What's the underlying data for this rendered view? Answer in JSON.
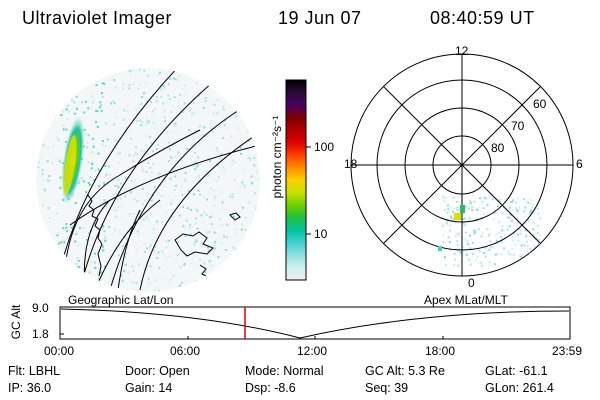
{
  "header": {
    "title": "Ultraviolet Imager",
    "date": "19 Jun 07",
    "time": "08:40:59 UT"
  },
  "left_panel": {
    "label": "Geographic Lat/Lon"
  },
  "right_panel": {
    "label": "Apex MLat/MLT",
    "mlt_labels": {
      "top": "12",
      "left": "18",
      "right": "6",
      "bottom": "0"
    },
    "lat_labels": [
      "60",
      "70",
      "80"
    ]
  },
  "colorbar": {
    "unit_label": "photon cm⁻²s⁻¹",
    "ticks": [
      "100",
      "10"
    ],
    "colors": [
      "#000000",
      "#2a0a3a",
      "#4a0060",
      "#800000",
      "#b00000",
      "#e00000",
      "#ff4000",
      "#ff8c00",
      "#ffd000",
      "#c8e000",
      "#70d000",
      "#20c040",
      "#00c0a0",
      "#40d0d0",
      "#90e0e0",
      "#d0f0f0",
      "#eeeeee"
    ]
  },
  "altitude_plot": {
    "y_title": "GC Alt",
    "y_ticks": [
      "9.0",
      "1.8"
    ],
    "x_ticks": [
      "00:00",
      "06:00",
      "12:00",
      "18:00",
      "23:59"
    ],
    "current_time_marker": "08:40"
  },
  "info_rows": [
    [
      {
        "label": "Flt:",
        "value": "LBHL"
      },
      {
        "label": "Door:",
        "value": "Open"
      },
      {
        "label": "Mode:",
        "value": "Normal"
      },
      {
        "label": "GC Alt:",
        "value": "5.3 Re"
      },
      {
        "label": "GLat:",
        "value": "-61.1"
      }
    ],
    [
      {
        "label": "IP:",
        "value": "36.0"
      },
      {
        "label": "Gain:",
        "value": "14"
      },
      {
        "label": "Dsp:",
        "value": "-8.6"
      },
      {
        "label": "Seq:",
        "value": "39"
      },
      {
        "label": "GLon:",
        "value": "261.4"
      }
    ]
  ]
}
